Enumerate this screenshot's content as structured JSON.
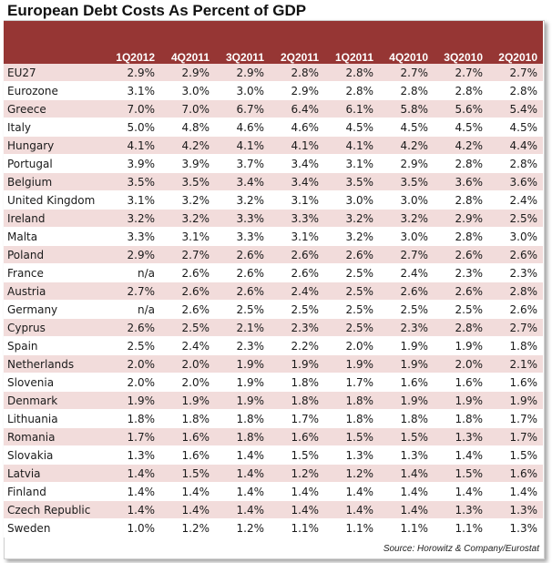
{
  "title": "European Debt Costs As Percent of GDP",
  "source": "Source: Horowitz & Company/Eurostat",
  "colors": {
    "header_bg": "#963634",
    "header_text": "#ffffff",
    "band": "#f2dcdb"
  },
  "chart_data": {
    "type": "table",
    "columns": [
      "1Q2012",
      "4Q2011",
      "3Q2011",
      "2Q2011",
      "1Q2011",
      "4Q2010",
      "3Q2010",
      "2Q2010"
    ],
    "rows": [
      {
        "country": "EU27",
        "values": [
          "2.9%",
          "2.9%",
          "2.9%",
          "2.8%",
          "2.8%",
          "2.7%",
          "2.7%",
          "2.7%"
        ]
      },
      {
        "country": "Eurozone",
        "values": [
          "3.1%",
          "3.0%",
          "3.0%",
          "2.9%",
          "2.8%",
          "2.8%",
          "2.8%",
          "2.8%"
        ]
      },
      {
        "country": "Greece",
        "values": [
          "7.0%",
          "7.0%",
          "6.7%",
          "6.4%",
          "6.1%",
          "5.8%",
          "5.6%",
          "5.4%"
        ]
      },
      {
        "country": "Italy",
        "values": [
          "5.0%",
          "4.8%",
          "4.6%",
          "4.6%",
          "4.5%",
          "4.5%",
          "4.5%",
          "4.5%"
        ]
      },
      {
        "country": "Hungary",
        "values": [
          "4.1%",
          "4.2%",
          "4.1%",
          "4.1%",
          "4.1%",
          "4.2%",
          "4.2%",
          "4.4%"
        ]
      },
      {
        "country": "Portugal",
        "values": [
          "3.9%",
          "3.9%",
          "3.7%",
          "3.4%",
          "3.1%",
          "2.9%",
          "2.8%",
          "2.8%"
        ]
      },
      {
        "country": "Belgium",
        "values": [
          "3.5%",
          "3.5%",
          "3.4%",
          "3.4%",
          "3.5%",
          "3.5%",
          "3.6%",
          "3.6%"
        ]
      },
      {
        "country": "United Kingdom",
        "values": [
          "3.1%",
          "3.2%",
          "3.2%",
          "3.1%",
          "3.0%",
          "3.0%",
          "2.8%",
          "2.4%"
        ]
      },
      {
        "country": "Ireland",
        "values": [
          "3.2%",
          "3.2%",
          "3.3%",
          "3.3%",
          "3.2%",
          "3.2%",
          "2.9%",
          "2.5%"
        ]
      },
      {
        "country": "Malta",
        "values": [
          "3.3%",
          "3.1%",
          "3.3%",
          "3.1%",
          "3.2%",
          "3.0%",
          "2.8%",
          "3.0%"
        ]
      },
      {
        "country": "Poland",
        "values": [
          "2.9%",
          "2.7%",
          "2.6%",
          "2.6%",
          "2.6%",
          "2.7%",
          "2.6%",
          "2.6%"
        ]
      },
      {
        "country": "France",
        "values": [
          "n/a",
          "2.6%",
          "2.6%",
          "2.6%",
          "2.5%",
          "2.4%",
          "2.3%",
          "2.3%"
        ]
      },
      {
        "country": "Austria",
        "values": [
          "2.7%",
          "2.6%",
          "2.6%",
          "2.4%",
          "2.5%",
          "2.6%",
          "2.6%",
          "2.8%"
        ]
      },
      {
        "country": "Germany",
        "values": [
          "n/a",
          "2.6%",
          "2.5%",
          "2.5%",
          "2.5%",
          "2.5%",
          "2.5%",
          "2.6%"
        ]
      },
      {
        "country": "Cyprus",
        "values": [
          "2.6%",
          "2.5%",
          "2.1%",
          "2.3%",
          "2.5%",
          "2.3%",
          "2.8%",
          "2.7%"
        ]
      },
      {
        "country": "Spain",
        "values": [
          "2.5%",
          "2.4%",
          "2.3%",
          "2.2%",
          "2.0%",
          "1.9%",
          "1.9%",
          "1.8%"
        ]
      },
      {
        "country": "Netherlands",
        "values": [
          "2.0%",
          "2.0%",
          "1.9%",
          "1.9%",
          "1.9%",
          "1.9%",
          "2.0%",
          "2.1%"
        ]
      },
      {
        "country": "Slovenia",
        "values": [
          "2.0%",
          "2.0%",
          "1.9%",
          "1.8%",
          "1.7%",
          "1.6%",
          "1.6%",
          "1.6%"
        ]
      },
      {
        "country": "Denmark",
        "values": [
          "1.9%",
          "1.9%",
          "1.9%",
          "1.8%",
          "1.8%",
          "1.9%",
          "1.9%",
          "1.9%"
        ]
      },
      {
        "country": "Lithuania",
        "values": [
          "1.8%",
          "1.8%",
          "1.8%",
          "1.7%",
          "1.8%",
          "1.8%",
          "1.8%",
          "1.7%"
        ]
      },
      {
        "country": "Romania",
        "values": [
          "1.7%",
          "1.6%",
          "1.8%",
          "1.6%",
          "1.5%",
          "1.5%",
          "1.3%",
          "1.7%"
        ]
      },
      {
        "country": "Slovakia",
        "values": [
          "1.3%",
          "1.6%",
          "1.4%",
          "1.5%",
          "1.3%",
          "1.3%",
          "1.4%",
          "1.5%"
        ]
      },
      {
        "country": "Latvia",
        "values": [
          "1.4%",
          "1.5%",
          "1.4%",
          "1.2%",
          "1.2%",
          "1.4%",
          "1.5%",
          "1.6%"
        ]
      },
      {
        "country": "Finland",
        "values": [
          "1.4%",
          "1.4%",
          "1.4%",
          "1.4%",
          "1.4%",
          "1.4%",
          "1.4%",
          "1.4%"
        ]
      },
      {
        "country": "Czech Republic",
        "values": [
          "1.4%",
          "1.4%",
          "1.4%",
          "1.4%",
          "1.4%",
          "1.4%",
          "1.3%",
          "1.3%"
        ]
      },
      {
        "country": "Sweden",
        "values": [
          "1.0%",
          "1.2%",
          "1.2%",
          "1.1%",
          "1.1%",
          "1.1%",
          "1.1%",
          "1.3%"
        ]
      }
    ]
  }
}
